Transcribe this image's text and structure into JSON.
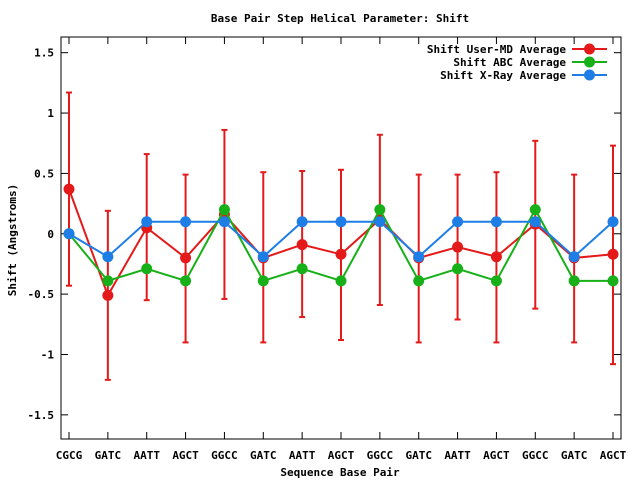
{
  "chart_data": {
    "type": "line",
    "title": "Base Pair Step Helical Parameter: Shift",
    "xlabel": "Sequence Base Pair",
    "ylabel": "Shift (Angstroms)",
    "categories": [
      "CGCG",
      "GATC",
      "AATT",
      "AGCT",
      "GGCC",
      "GATC",
      "AATT",
      "AGCT",
      "GGCC",
      "GATC",
      "AATT",
      "AGCT",
      "GGCC",
      "GATC",
      "AGCT"
    ],
    "ylim": [
      -1.7,
      1.63
    ],
    "yticks": [
      {
        "value": 1.5,
        "label": "1.5"
      },
      {
        "value": 1,
        "label": "1"
      },
      {
        "value": 0.5,
        "label": "0.5"
      },
      {
        "value": 0,
        "label": "0"
      },
      {
        "value": -0.5,
        "label": "-0.5"
      },
      {
        "value": -1,
        "label": "-1"
      },
      {
        "value": -1.5,
        "label": "-1.5"
      }
    ],
    "grid": false,
    "legend_position": "top-right",
    "series": [
      {
        "name": "Shift User-MD Average",
        "color": "#e41a1a",
        "values": [
          0.37,
          -0.51,
          0.05,
          -0.2,
          0.16,
          -0.2,
          -0.09,
          -0.17,
          0.12,
          -0.2,
          -0.11,
          -0.19,
          0.08,
          -0.2,
          -0.17
        ],
        "error_low": [
          -0.43,
          -1.21,
          -0.55,
          -0.9,
          -0.54,
          -0.9,
          -0.69,
          -0.88,
          -0.59,
          -0.9,
          -0.71,
          -0.9,
          -0.62,
          -0.9,
          -1.08
        ],
        "error_high": [
          1.17,
          0.19,
          0.66,
          0.49,
          0.86,
          0.51,
          0.52,
          0.53,
          0.82,
          0.49,
          0.49,
          0.51,
          0.77,
          0.49,
          0.73
        ]
      },
      {
        "name": "Shift ABC Average",
        "color": "#18b018",
        "values": [
          0.0,
          -0.39,
          -0.29,
          -0.39,
          0.2,
          -0.39,
          -0.29,
          -0.39,
          0.2,
          -0.39,
          -0.29,
          -0.39,
          0.2,
          -0.39,
          -0.39
        ]
      },
      {
        "name": "Shift X-Ray Average",
        "color": "#1e7ee6",
        "values": [
          0.0,
          -0.19,
          0.1,
          0.1,
          0.1,
          -0.19,
          0.1,
          0.1,
          0.1,
          -0.19,
          0.1,
          0.1,
          0.1,
          -0.19,
          0.1
        ]
      }
    ]
  }
}
